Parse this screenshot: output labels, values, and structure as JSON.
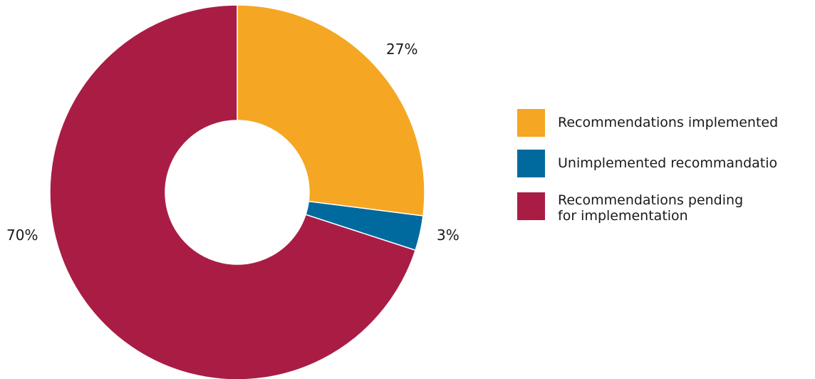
{
  "chart_data": {
    "type": "pie",
    "donut": true,
    "categories": [
      "Recommendations implemented",
      "Unimplemented recommandatio",
      "Recommendations pending\nfor implementation"
    ],
    "values": [
      27,
      3,
      70
    ],
    "labels": [
      "27%",
      "3%",
      "70%"
    ],
    "colors": [
      "#f5a623",
      "#006a9e",
      "#a91d45"
    ],
    "legend_position": "right",
    "title": ""
  }
}
